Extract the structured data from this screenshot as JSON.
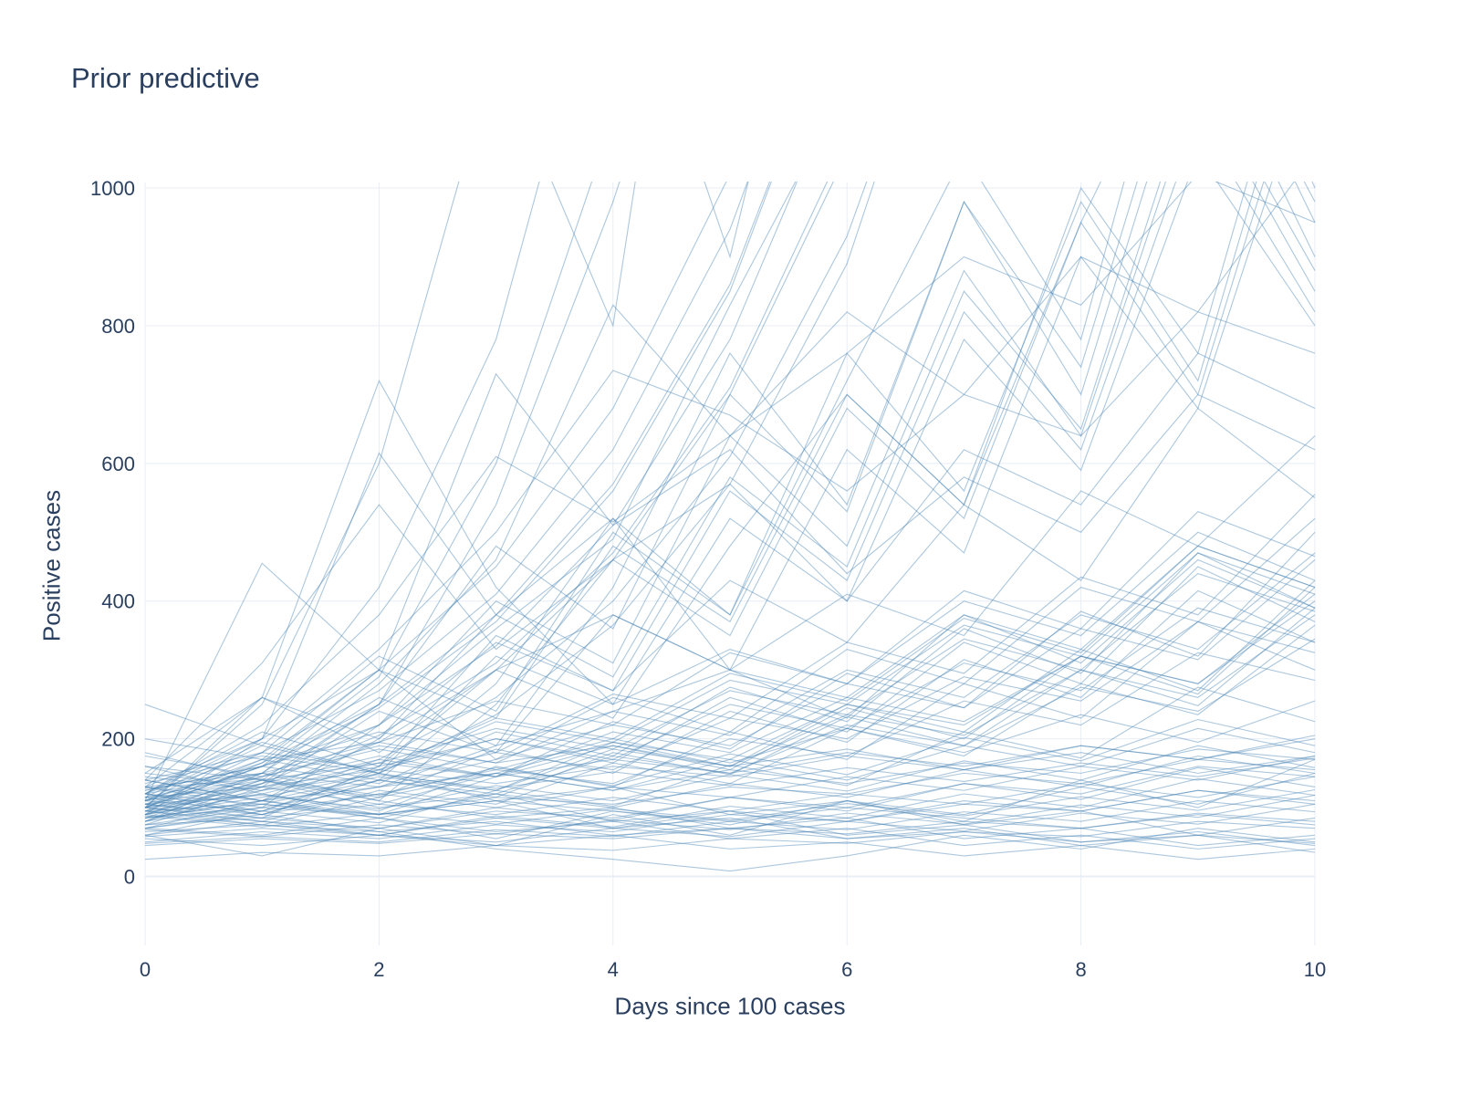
{
  "title": "Prior predictive",
  "colors": {
    "text": "#2a3f5f",
    "grid": "#e8edf6",
    "zeroline": "#e8edf6",
    "background": "#ffffff",
    "line": "#4682b4"
  },
  "chart_data": {
    "type": "line",
    "title": "Prior predictive",
    "xlabel": "Days since 100 cases",
    "ylabel": "Positive cases",
    "x": [
      0,
      1,
      2,
      3,
      4,
      5,
      6,
      7,
      8,
      9,
      10
    ],
    "xticks": [
      0,
      2,
      4,
      6,
      8,
      10
    ],
    "yticks": [
      0,
      200,
      400,
      600,
      800,
      1000
    ],
    "xlim": [
      0,
      10
    ],
    "ylim": [
      0,
      1000
    ],
    "grid": true,
    "legend": false,
    "line_opacity": 0.45,
    "line_width": 1.1,
    "series": [
      [
        110,
        455,
        300,
        170,
        260,
        210,
        330,
        280,
        420,
        370,
        520
      ],
      [
        130,
        260,
        720,
        420,
        250,
        330,
        280,
        400,
        350,
        500,
        430
      ],
      [
        90,
        200,
        615,
        380,
        520,
        300,
        410,
        350,
        560,
        480,
        640
      ],
      [
        140,
        310,
        540,
        330,
        460,
        570,
        400,
        620,
        540,
        760,
        680
      ],
      [
        100,
        170,
        300,
        730,
        510,
        620,
        440,
        580,
        500,
        700,
        620
      ],
      [
        120,
        220,
        380,
        610,
        515,
        640,
        820,
        700,
        900,
        820,
        1050
      ],
      [
        80,
        150,
        280,
        460,
        830,
        640,
        760,
        900,
        830,
        1020,
        950
      ],
      [
        110,
        190,
        330,
        500,
        735,
        670,
        560,
        700,
        640,
        820,
        760
      ],
      [
        100,
        160,
        290,
        600,
        1100,
        1600,
        2300,
        3200,
        4500,
        6000,
        8000
      ],
      [
        90,
        140,
        250,
        540,
        980,
        1500,
        2200,
        3000,
        4200,
        5600,
        7500
      ],
      [
        70,
        60,
        85,
        55,
        95,
        75,
        110,
        90,
        130,
        105,
        150
      ],
      [
        90,
        75,
        65,
        80,
        60,
        70,
        55,
        65,
        50,
        60,
        48
      ],
      [
        60,
        80,
        70,
        95,
        85,
        115,
        100,
        135,
        120,
        160,
        145
      ],
      [
        110,
        95,
        120,
        100,
        130,
        115,
        145,
        125,
        160,
        140,
        175
      ],
      [
        50,
        65,
        55,
        75,
        65,
        90,
        80,
        105,
        95,
        125,
        110
      ],
      [
        130,
        110,
        130,
        150,
        125,
        155,
        135,
        165,
        150,
        185,
        170
      ],
      [
        85,
        100,
        90,
        115,
        105,
        130,
        120,
        150,
        135,
        170,
        155
      ],
      [
        45,
        55,
        48,
        62,
        55,
        70,
        62,
        80,
        70,
        92,
        80
      ],
      [
        150,
        130,
        155,
        135,
        160,
        145,
        175,
        155,
        190,
        170,
        205
      ],
      [
        100,
        85,
        105,
        90,
        115,
        95,
        120,
        105,
        135,
        115,
        145
      ],
      [
        65,
        75,
        60,
        85,
        70,
        95,
        80,
        110,
        95,
        125,
        105
      ],
      [
        25,
        35,
        30,
        45,
        38,
        55,
        48,
        65,
        58,
        80,
        70
      ],
      [
        200,
        170,
        195,
        165,
        190,
        160,
        185,
        155,
        180,
        150,
        175
      ],
      [
        120,
        105,
        90,
        110,
        95,
        80,
        100,
        85,
        70,
        90,
        75
      ],
      [
        160,
        140,
        165,
        145,
        170,
        150,
        180,
        160,
        190,
        170,
        200
      ],
      [
        180,
        140,
        100,
        120,
        80,
        95,
        60,
        75,
        50,
        65,
        45
      ],
      [
        140,
        110,
        85,
        65,
        80,
        55,
        70,
        45,
        60,
        40,
        55
      ],
      [
        250,
        190,
        150,
        110,
        130,
        90,
        110,
        75,
        95,
        60,
        85
      ],
      [
        160,
        120,
        90,
        110,
        70,
        85,
        55,
        70,
        45,
        60,
        35
      ],
      [
        100,
        80,
        60,
        45,
        60,
        40,
        50,
        30,
        45,
        25,
        40
      ],
      [
        130,
        150,
        110,
        85,
        100,
        70,
        85,
        55,
        70,
        45,
        60
      ],
      [
        120,
        90,
        65,
        40,
        25,
        8,
        30,
        60,
        40,
        70,
        50
      ],
      [
        100,
        130,
        170,
        145,
        210,
        180,
        260,
        225,
        320,
        280,
        400
      ],
      [
        90,
        120,
        160,
        200,
        170,
        250,
        215,
        310,
        270,
        390,
        340
      ],
      [
        120,
        150,
        130,
        190,
        240,
        205,
        300,
        260,
        380,
        330,
        470
      ],
      [
        80,
        105,
        140,
        120,
        175,
        150,
        220,
        190,
        275,
        240,
        345
      ],
      [
        110,
        145,
        190,
        165,
        240,
        300,
        260,
        380,
        330,
        480,
        420
      ],
      [
        95,
        125,
        165,
        215,
        185,
        270,
        235,
        345,
        300,
        440,
        385
      ],
      [
        105,
        90,
        140,
        180,
        155,
        230,
        200,
        290,
        255,
        370,
        325
      ],
      [
        75,
        100,
        130,
        170,
        220,
        190,
        280,
        245,
        360,
        315,
        460
      ],
      [
        140,
        180,
        155,
        230,
        200,
        295,
        255,
        375,
        325,
        480,
        420
      ],
      [
        85,
        110,
        145,
        125,
        185,
        160,
        235,
        205,
        300,
        260,
        380
      ],
      [
        115,
        150,
        195,
        255,
        220,
        325,
        280,
        415,
        360,
        530,
        465
      ],
      [
        70,
        90,
        120,
        155,
        135,
        200,
        175,
        255,
        220,
        325,
        285
      ],
      [
        125,
        160,
        210,
        180,
        265,
        230,
        340,
        295,
        435,
        380,
        555
      ],
      [
        95,
        75,
        115,
        150,
        195,
        170,
        250,
        220,
        320,
        280,
        410
      ],
      [
        135,
        175,
        150,
        225,
        195,
        285,
        250,
        365,
        320,
        470,
        410
      ],
      [
        100,
        160,
        220,
        360,
        490,
        830,
        1150,
        1900,
        2600,
        4200,
        5800
      ],
      [
        80,
        125,
        195,
        300,
        460,
        700,
        1050,
        1600,
        2400,
        3600,
        5400
      ],
      [
        120,
        180,
        270,
        410,
        620,
        940,
        1400,
        2100,
        3200,
        4800,
        7200
      ],
      [
        90,
        135,
        205,
        310,
        470,
        710,
        1070,
        1600,
        2400,
        3600,
        5400
      ],
      [
        110,
        165,
        250,
        380,
        570,
        860,
        1300,
        1950,
        2900,
        4400,
        6600
      ],
      [
        70,
        110,
        170,
        260,
        400,
        610,
        930,
        1400,
        2100,
        3200,
        4900
      ],
      [
        130,
        200,
        300,
        450,
        680,
        1020,
        1550,
        2300,
        3500,
        5200,
        7800
      ],
      [
        60,
        95,
        150,
        235,
        365,
        570,
        890,
        1400,
        2200,
        3400,
        5300
      ],
      [
        105,
        160,
        245,
        370,
        560,
        850,
        1300,
        1950,
        2950,
        4450,
        6700
      ],
      [
        95,
        145,
        220,
        335,
        510,
        780,
        1180,
        1800,
        2700,
        4100,
        6200
      ],
      [
        110,
        170,
        140,
        280,
        520,
        380,
        760,
        560,
        980,
        720,
        1300
      ],
      [
        90,
        150,
        260,
        190,
        420,
        760,
        540,
        980,
        700,
        1250,
        900
      ],
      [
        130,
        100,
        220,
        400,
        310,
        640,
        480,
        880,
        640,
        1150,
        850
      ],
      [
        100,
        180,
        320,
        240,
        500,
        380,
        720,
        1050,
        780,
        1400,
        1000
      ],
      [
        85,
        140,
        110,
        250,
        460,
        350,
        680,
        520,
        950,
        700,
        1250
      ],
      [
        120,
        210,
        160,
        350,
        270,
        560,
        430,
        820,
        620,
        1100,
        820
      ],
      [
        75,
        130,
        240,
        180,
        380,
        300,
        620,
        470,
        900,
        680,
        1200
      ],
      [
        140,
        110,
        200,
        380,
        290,
        580,
        450,
        850,
        650,
        1180,
        880
      ],
      [
        95,
        165,
        300,
        230,
        480,
        370,
        700,
        540,
        1000,
        760,
        1350
      ],
      [
        105,
        85,
        160,
        300,
        230,
        480,
        700,
        540,
        950,
        1300,
        980
      ],
      [
        115,
        195,
        150,
        320,
        250,
        520,
        400,
        780,
        590,
        1050,
        800
      ],
      [
        80,
        135,
        250,
        480,
        360,
        700,
        530,
        980,
        740,
        1300,
        950
      ],
      [
        100,
        120,
        95,
        160,
        130,
        210,
        170,
        280,
        230,
        370,
        300
      ],
      [
        90,
        115,
        150,
        125,
        195,
        160,
        250,
        210,
        330,
        270,
        430
      ],
      [
        110,
        140,
        115,
        185,
        150,
        240,
        195,
        315,
        260,
        415,
        340
      ],
      [
        120,
        95,
        155,
        200,
        165,
        260,
        210,
        340,
        280,
        450,
        370
      ],
      [
        85,
        110,
        90,
        145,
        190,
        155,
        245,
        200,
        320,
        265,
        420
      ],
      [
        105,
        135,
        175,
        145,
        225,
        185,
        295,
        245,
        385,
        320,
        500
      ],
      [
        95,
        80,
        125,
        105,
        165,
        135,
        215,
        175,
        280,
        235,
        365
      ],
      [
        125,
        160,
        135,
        210,
        175,
        275,
        225,
        360,
        295,
        470,
        390
      ],
      [
        70,
        95,
        78,
        125,
        102,
        162,
        132,
        210,
        172,
        275,
        225
      ],
      [
        115,
        90,
        140,
        115,
        180,
        148,
        232,
        190,
        300,
        248,
        390
      ],
      [
        100,
        260,
        180,
        300,
        380,
        300,
        230,
        380,
        310,
        460,
        390
      ],
      [
        150,
        260,
        200,
        340,
        270,
        430,
        340,
        540,
        430,
        680,
        550
      ],
      [
        60,
        30,
        70,
        45,
        90,
        60,
        110,
        80,
        140,
        100,
        170
      ],
      [
        175,
        145,
        185,
        155,
        200,
        165,
        215,
        180,
        235,
        195,
        255
      ],
      [
        55,
        45,
        60,
        50,
        70,
        58,
        80,
        66,
        92,
        76,
        105
      ],
      [
        120,
        200,
        420,
        780,
        1400,
        900,
        1600,
        1100,
        2000,
        1500,
        2600
      ],
      [
        100,
        250,
        600,
        1200,
        800,
        1900,
        1300,
        2600,
        1900,
        3400,
        2600
      ],
      [
        95,
        105,
        85,
        120,
        100,
        135,
        115,
        155,
        130,
        175,
        150
      ],
      [
        75,
        85,
        70,
        100,
        82,
        115,
        95,
        135,
        112,
        158,
        130
      ],
      [
        115,
        130,
        105,
        150,
        125,
        170,
        140,
        190,
        160,
        215,
        180
      ],
      [
        58,
        70,
        60,
        88,
        72,
        102,
        85,
        120,
        100,
        142,
        118
      ],
      [
        145,
        125,
        148,
        128,
        152,
        132,
        158,
        138,
        165,
        145,
        172
      ],
      [
        88,
        72,
        92,
        76,
        98,
        82,
        106,
        88,
        116,
        96,
        126
      ],
      [
        105,
        118,
        98,
        132,
        110,
        148,
        124,
        168,
        140,
        190,
        158
      ],
      [
        68,
        58,
        75,
        62,
        82,
        68,
        92,
        76,
        104,
        86,
        118
      ],
      [
        128,
        142,
        118,
        158,
        132,
        178,
        148,
        202,
        168,
        228,
        190
      ],
      [
        48,
        58,
        50,
        68,
        58,
        80,
        68,
        94,
        80,
        110,
        94
      ]
    ]
  }
}
